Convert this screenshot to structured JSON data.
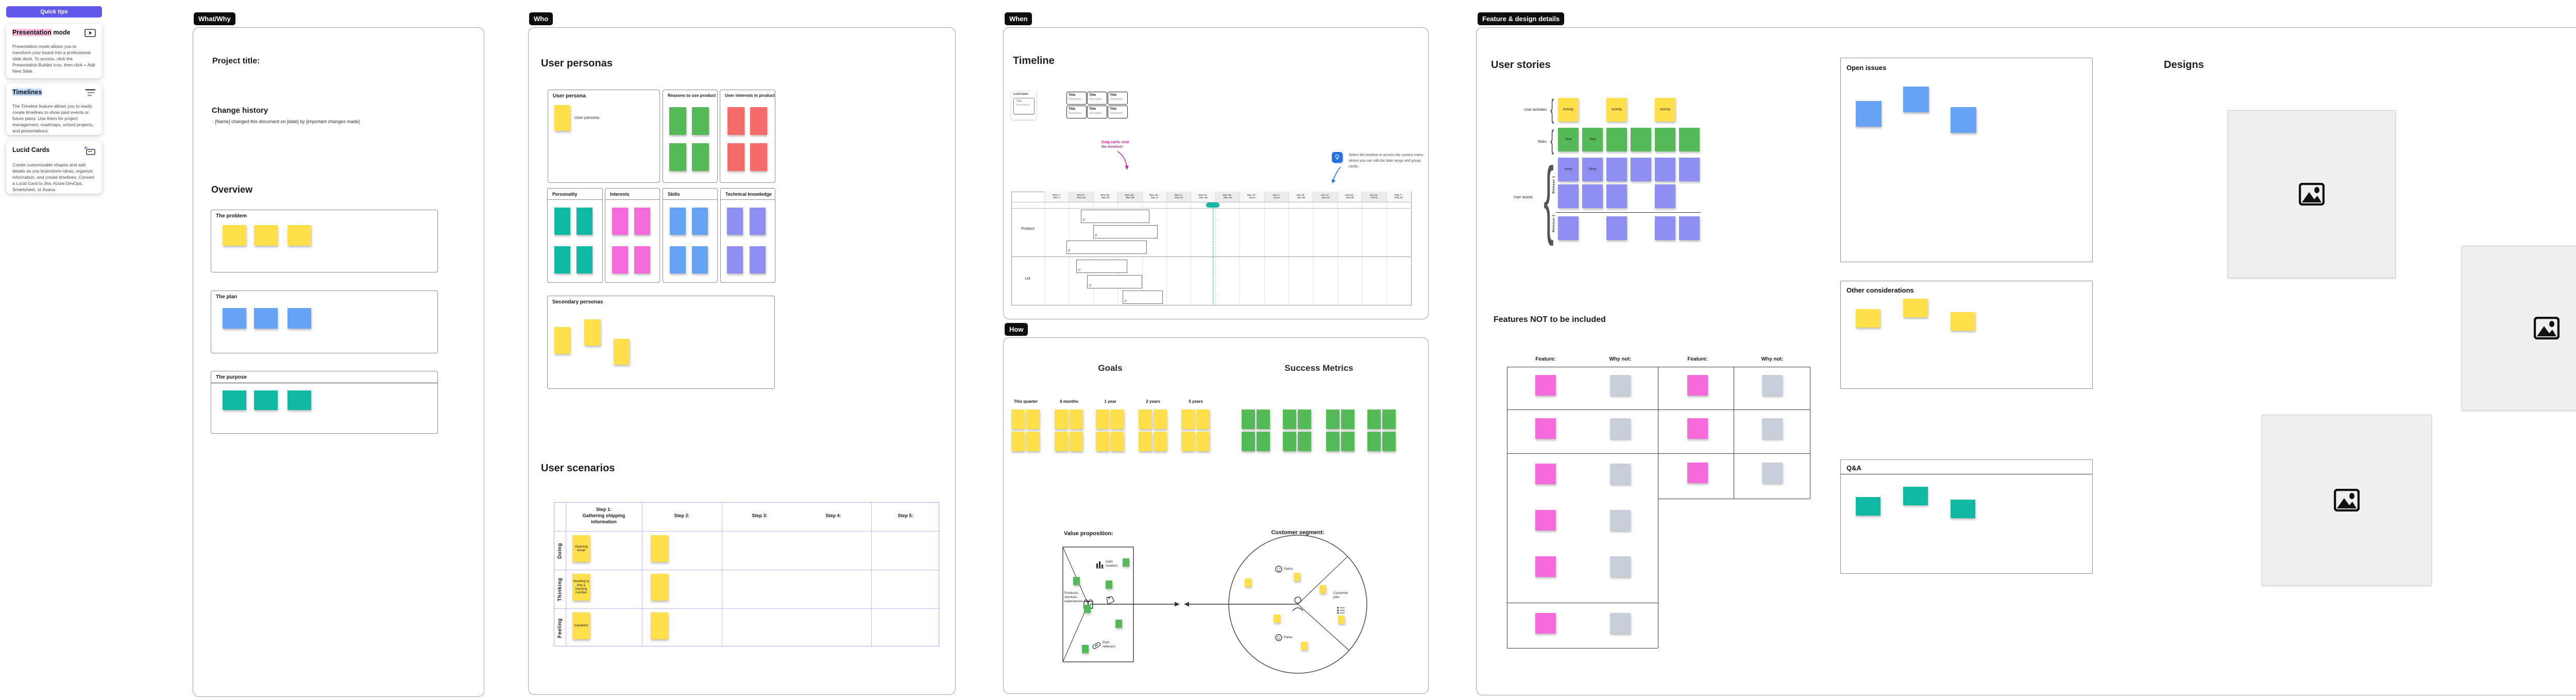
{
  "quick_tips": {
    "button_label": "Quick tips",
    "cards": [
      {
        "title_hl": "Presentation",
        "title_rest": " mode",
        "icon": "presentation-play-icon",
        "body": "Presentation mode allows you to transform your board into a professional slide deck. To access, click the Presentation Builder icon, then click + Add New Slide."
      },
      {
        "title_hl": "Timelines",
        "title_rest": "",
        "icon": "timeline-bars-icon",
        "body": "The Timeline feature allows you to easily create timelines to show past events or future plans. Use them for project management, roadmaps, school projects, and presentations."
      },
      {
        "title_hl": "",
        "title_rest": "Lucid Cards",
        "icon": "lucid-card-icon",
        "body": "Create customizable shapes and add details as you brainstorm ideas, organize information, and create timelines. Convert a Lucid Card to Jira, Azure DevOps, Smartsheet, or Asana."
      }
    ]
  },
  "what_why": {
    "tag": "What/Why",
    "project_title": "Project title:",
    "change_history_heading": "Change history",
    "change_history_entry": "- [Name] changed this document on [date] by [important changes made]",
    "overview_heading": "Overview",
    "cards": [
      {
        "label": "The problem",
        "color": "c-yellow"
      },
      {
        "label": "The plan",
        "color": "c-blue"
      },
      {
        "label": "The purpose",
        "color": "c-teal"
      }
    ]
  },
  "who": {
    "tag": "Who",
    "personas_heading": "User personas",
    "persona_card_label": "User persona",
    "persona_sticky_text": "User persona",
    "attribute_cards": [
      "Reasons to use product",
      "User interests in product",
      "Personality",
      "Interests",
      "Skills",
      "Technical knowledge"
    ],
    "secondary_label": "Secondary personas",
    "scenarios_heading": "User scenarios",
    "scenario_columns": [
      "Step 1:\nGathering shipping\ninformation",
      "Step 2:",
      "Step 3:",
      "Step 4:",
      "Step 5:"
    ],
    "scenario_rows": [
      "Doing",
      "Thinking",
      "Feeling"
    ],
    "scenario_step1_notes": [
      "Opening\nemail",
      "Needing to\nfind a\ntracking\nnumber",
      "Impatient"
    ]
  },
  "when": {
    "tag": "When",
    "heading": "Timeline",
    "lucid_cards_panel": {
      "title": "Lucid Cards",
      "card_title": "Title",
      "card_desc": "Description"
    },
    "card_title": "Title",
    "card_desc": "Description",
    "card_count": 6,
    "annotation": "Drag cards onto\nthe timeline!",
    "tip": "Select the timeline to access the context menu where you can edit the date range and group cards.",
    "timeline": {
      "weeks": [
        "Nov 1 -\nNov 7",
        "Nov 8 -\nNov 14",
        "Nov 15 -\nNov 21",
        "Nov 22 -\nNov 28",
        "Nov 29 -\nDec 5",
        "Dec 6 -\nDec 12",
        "Dec 13 -\nDec 19",
        "Dec 20 -\nDec 26",
        "Dec 27 -\nJan 2",
        "Jan 3 -\nJan 9",
        "Jan 10 -\nJan 16",
        "Jan 17 -\nJan 23",
        "Jan 24 -\nJan 30",
        "Jan 31 -\nFeb 6",
        "Feb 7 -\nFeb 13"
      ],
      "lanes": [
        "Product",
        "UX"
      ],
      "today_week": 6.9,
      "today_color": "#14B8A6",
      "bars": [
        {
          "lane": "Product",
          "label": "P",
          "start_week": 1.5,
          "end_week": 4.3
        },
        {
          "lane": "Product",
          "label": "P",
          "start_week": 2.0,
          "end_week": 4.65
        },
        {
          "lane": "Product",
          "label": "P",
          "start_week": 0.9,
          "end_week": 4.2
        },
        {
          "lane": "UX",
          "label": "U",
          "start_week": 1.3,
          "end_week": 3.4
        },
        {
          "lane": "UX",
          "label": "U",
          "start_week": 1.75,
          "end_week": 4.0
        },
        {
          "lane": "UX",
          "label": "U",
          "start_week": 3.2,
          "end_week": 4.85
        }
      ]
    }
  },
  "how": {
    "tag": "How",
    "goals_heading": "Goals",
    "metrics_heading": "Success Metrics",
    "horizons": [
      "This quarter",
      "6 months",
      "1 year",
      "2 years",
      "5 years"
    ],
    "metric_group_count": 4,
    "value_prop": {
      "left_label": "Value proposition:",
      "right_label": "Customer segment:",
      "gain_creators": "Gain\ncreators",
      "products": "Products,\nservices,\nexperiences",
      "pain_relievers": "Pain\nrelievers",
      "gains": "Gains",
      "customer_jobs": "Customer\njobs",
      "pains": "Pains"
    }
  },
  "feature": {
    "tag": "Feature & design details",
    "stories_heading": "User stories",
    "story_map": {
      "row_label_activities": "User activities",
      "row_label_tasks": "Tasks",
      "row_label_stories": "User stories",
      "release_labels": [
        "Release 1",
        "Release 2"
      ],
      "rows": [
        {
          "color": "c-yellow",
          "cells": [
            {
              "col": 0,
              "text": "Activity"
            },
            {
              "col": 2,
              "text": "Activity"
            },
            {
              "col": 4,
              "text": "Activity"
            }
          ]
        },
        {
          "color": "c-green",
          "cells": [
            {
              "col": 0,
              "text": "Task"
            },
            {
              "col": 1,
              "text": "Task"
            },
            {
              "col": 2
            },
            {
              "col": 3
            },
            {
              "col": 4
            },
            {
              "col": 5
            }
          ]
        },
        {
          "color": "c-purple",
          "cells": [
            {
              "col": 0,
              "text": "Story"
            },
            {
              "col": 1,
              "text": "Story"
            },
            {
              "col": 2
            },
            {
              "col": 3
            },
            {
              "col": 4
            },
            {
              "col": 5
            }
          ]
        },
        {
          "color": "c-purple",
          "cells": [
            {
              "col": 0
            },
            {
              "col": 1
            },
            {
              "col": 2
            },
            {
              "col": 4
            }
          ]
        },
        {
          "color": "c-purple",
          "cells": [
            {
              "col": 0
            },
            {
              "col": 2
            },
            {
              "col": 4
            },
            {
              "col": 5
            }
          ]
        }
      ]
    },
    "not_included": {
      "heading": "Features NOT to be included",
      "col_headers": [
        "Feature:",
        "Why not:",
        "Feature:",
        "Why not:"
      ],
      "left_row_count": 6,
      "right_row_count": 3
    },
    "open_issues_title": "Open issues",
    "other_considerations_title": "Other considerations",
    "qa_title": "Q&A",
    "designs_heading": "Designs"
  },
  "colors": {
    "accent_purple": "#6157E8",
    "tag_black": "#0e0e0e",
    "today_teal": "#14B8A6",
    "annotation_pink": "#C9279C",
    "tip_blue": "#2370E8"
  }
}
